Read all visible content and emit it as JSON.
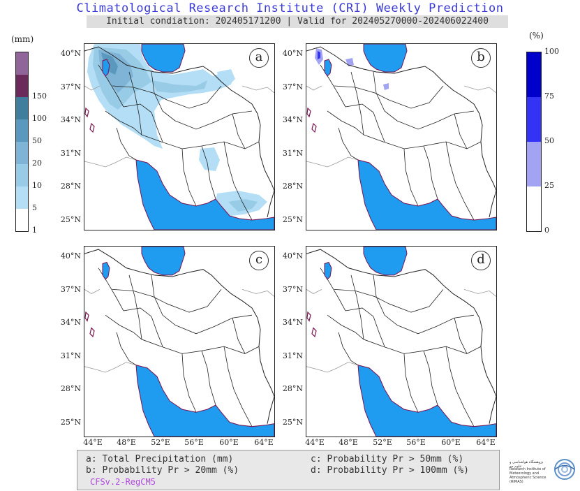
{
  "header": {
    "title": "Climatological Research Institute (CRI) Weekly Prediction",
    "subtitle": "Initial condiation: 202405171200 | Valid for 202405270000-202406022400"
  },
  "colors": {
    "sea": "#1f9bf0",
    "coast": "#7a1450",
    "border": "#222222",
    "neighbor_border": "#9a9a9a"
  },
  "precip_colorbar": {
    "unit": "(mm)",
    "levels": [
      "1",
      "5",
      "10",
      "20",
      "50",
      "100",
      "150"
    ],
    "colors": [
      "#ffffff",
      "#b3def5",
      "#98cbe5",
      "#7fb4d6",
      "#5b98be",
      "#3f7f9d",
      "#6a2a5a",
      "#8f659a"
    ]
  },
  "prob_colorbar": {
    "unit": "(%)",
    "levels": [
      "0",
      "25",
      "50",
      "75",
      "100"
    ],
    "colors": [
      "#ffffff",
      "#a3a3f3",
      "#3333f5",
      "#0000cc"
    ]
  },
  "panels": [
    {
      "id": "a",
      "label": "a"
    },
    {
      "id": "b",
      "label": "b"
    },
    {
      "id": "c",
      "label": "c"
    },
    {
      "id": "d",
      "label": "d"
    }
  ],
  "lat_labels": [
    "40°N",
    "37°N",
    "34°N",
    "31°N",
    "28°N",
    "25°N"
  ],
  "lon_labels": [
    "44°E",
    "48°E",
    "52°E",
    "56°E",
    "60°E",
    "64°E"
  ],
  "legend": {
    "a": "a: Total Precipitation (mm)",
    "b": "b: Probability Pr > 20mm (%)",
    "c": "c: Probability Pr > 50mm (%)",
    "d": "d: Probability Pr > 100mm (%)",
    "model": "CFSv.2-RegCM5"
  },
  "logo": {
    "fa_text": "پژوهشگاه هواشناسی و علوم جو",
    "en_text": "Research Institute of Meteorology and Atmospheric Science (RIMAS)"
  }
}
